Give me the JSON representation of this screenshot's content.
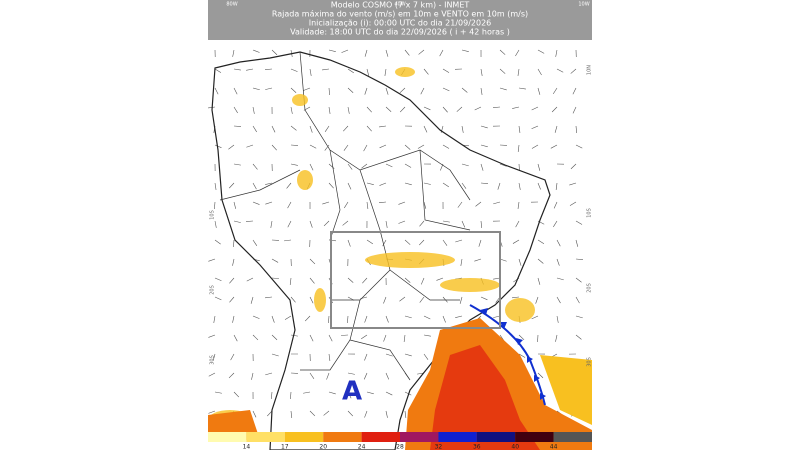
{
  "header": {
    "lines": [
      "Modelo COSMO (7 x 7 km) - INMET",
      "Rajada máxima do vento (m/s) em 10m e VENTO em 10m (m/s)",
      "Inicialização (i): 00:00 UTC do dia 21/09/2026",
      "Validade: 18:00 UTC do dia 22/09/2026 ( i + 42 horas )"
    ],
    "corner_labels": [
      "80W",
      "40W",
      "10W"
    ]
  },
  "map": {
    "lat_labels_left": [
      "10S",
      "20S",
      "30S"
    ],
    "lat_labels_right": [
      "10N",
      "10S",
      "20S",
      "30S"
    ],
    "pressure_center": "A"
  },
  "colorbar": {
    "ticks": [
      "14",
      "17",
      "20",
      "24",
      "28",
      "32",
      "36",
      "40",
      "44"
    ],
    "colors": [
      "#fffbb0",
      "#ffe066",
      "#f8c020",
      "#f07a10",
      "#e02010",
      "#a01860",
      "#1020d0",
      "#101080",
      "#400010",
      "#555555"
    ]
  }
}
